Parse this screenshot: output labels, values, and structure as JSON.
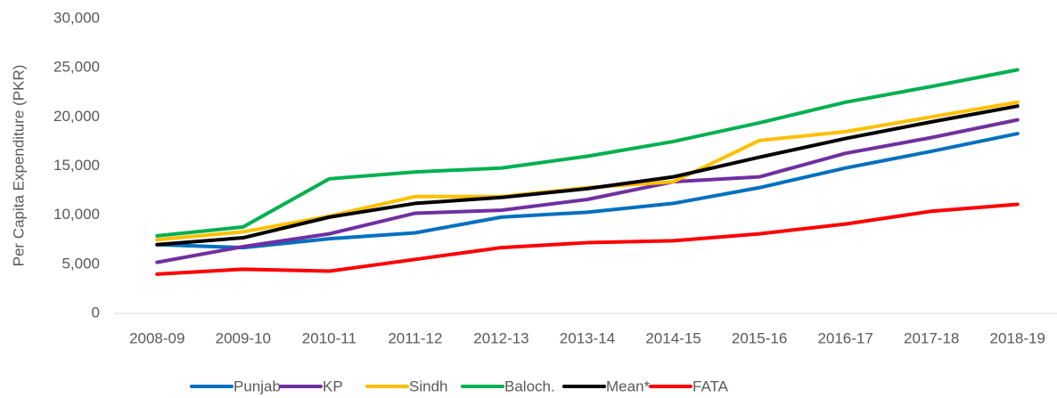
{
  "chart_data": {
    "type": "line",
    "y_label": "Per Capita Expenditure (PKR)",
    "categories": [
      "2008-09",
      "2009-10",
      "2010-11",
      "2011-12",
      "2012-13",
      "2013-14",
      "2014-15",
      "2015-16",
      "2016-17",
      "2017-18",
      "2018-19"
    ],
    "series": [
      {
        "name": "Punjab",
        "color": "#0070c0",
        "values": [
          7000,
          6700,
          7600,
          8200,
          9800,
          10300,
          11200,
          12800,
          14800,
          16500,
          18300
        ]
      },
      {
        "name": "KP",
        "color": "#7030a0",
        "values": [
          5200,
          6800,
          8100,
          10200,
          10500,
          11600,
          13400,
          13900,
          16300,
          17900,
          19700
        ]
      },
      {
        "name": "Sindh",
        "color": "#ffc000",
        "values": [
          7500,
          8300,
          9900,
          11900,
          11900,
          12800,
          13400,
          17600,
          18500,
          20000,
          21500
        ]
      },
      {
        "name": "Baloch.",
        "color": "#00b050",
        "values": [
          7900,
          8800,
          13700,
          14400,
          14800,
          16000,
          17500,
          19400,
          21500,
          23100,
          24800
        ]
      },
      {
        "name": "Mean*",
        "color": "#000000",
        "values": [
          7000,
          7700,
          9800,
          11200,
          11800,
          12700,
          13900,
          15900,
          17800,
          19500,
          21100
        ]
      },
      {
        "name": "FATA",
        "color": "#ff0000",
        "values": [
          4000,
          4500,
          4300,
          5500,
          6700,
          7200,
          7400,
          8100,
          9100,
          10400,
          11100
        ]
      }
    ],
    "ylim": [
      0,
      30000
    ],
    "yticks": [
      0,
      {
        "value": 5000,
        "label": "5,000"
      },
      {
        "value": 10000,
        "label": "10,000"
      },
      {
        "value": 15000,
        "label": "15,000"
      },
      {
        "value": 20000,
        "label": "20,000"
      },
      {
        "value": 25000,
        "label": "25,000"
      },
      {
        "value": 30000,
        "label": "30,000"
      }
    ],
    "grid": false,
    "legend": "bottom"
  }
}
